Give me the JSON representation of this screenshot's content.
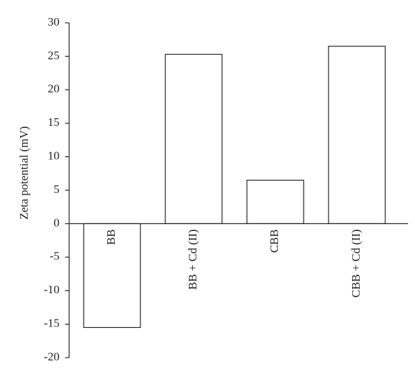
{
  "chart_data": {
    "type": "bar",
    "y_label": "Zeta potential (mV)",
    "categories": [
      "BB",
      "BB + Cd (II)",
      "CBB",
      "CBB + Cd (II)"
    ],
    "values": [
      -15.5,
      25.3,
      6.5,
      26.5
    ],
    "color": "#ffffff",
    "ylim": [
      -20,
      30
    ],
    "yticks": [
      -20,
      -15,
      -10,
      -5,
      0,
      5,
      10,
      15,
      20,
      25,
      30
    ],
    "grid": false
  }
}
